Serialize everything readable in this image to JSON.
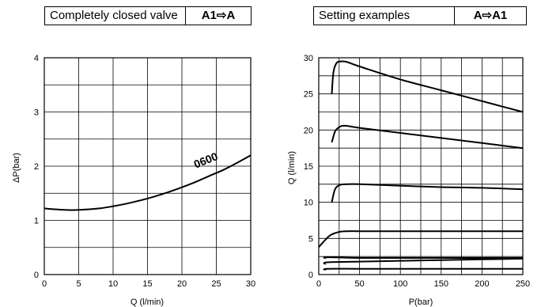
{
  "left": {
    "header_title": "Completely closed valve",
    "header_flow": "A1⇨A"
  },
  "right": {
    "header_title": "Setting examples",
    "header_flow": "A⇨A1"
  },
  "chart_data": [
    {
      "type": "line",
      "xlabel": "Q (l/min)",
      "ylabel": "ΔP(bar)",
      "xlim": [
        0,
        30
      ],
      "ylim": [
        0,
        4
      ],
      "xticks": [
        "0",
        "5",
        "10",
        "15",
        "20",
        "25",
        "30"
      ],
      "yticks": [
        "0",
        "1",
        "2",
        "3",
        "4"
      ],
      "grid": true,
      "annotation": "0600",
      "series": [
        {
          "name": "0600",
          "x": [
            0,
            2,
            4,
            6,
            8,
            10,
            12,
            14,
            16,
            18,
            20,
            22,
            24,
            26,
            28,
            30
          ],
          "y": [
            1.22,
            1.2,
            1.19,
            1.2,
            1.22,
            1.26,
            1.31,
            1.37,
            1.44,
            1.52,
            1.61,
            1.71,
            1.82,
            1.93,
            2.06,
            2.2
          ]
        }
      ]
    },
    {
      "type": "line",
      "xlabel": "P(bar)",
      "ylabel": "Q (l/min)",
      "xlim": [
        0,
        250
      ],
      "ylim": [
        0,
        30
      ],
      "xticks": [
        "0",
        "50",
        "100",
        "150",
        "200",
        "250"
      ],
      "yticks": [
        "0",
        "5",
        "10",
        "15",
        "20",
        "25",
        "30"
      ],
      "grid": true,
      "series": [
        {
          "x": [
            16,
            18,
            22,
            28,
            35,
            50,
            100,
            150,
            200,
            250
          ],
          "y": [
            25,
            28,
            29.3,
            29.5,
            29.4,
            28.8,
            27.0,
            25.5,
            24.0,
            22.5
          ]
        },
        {
          "x": [
            16,
            20,
            25,
            32,
            50,
            100,
            150,
            200,
            250
          ],
          "y": [
            18.3,
            19.8,
            20.4,
            20.6,
            20.3,
            19.6,
            18.9,
            18.2,
            17.5
          ]
        },
        {
          "x": [
            16,
            20,
            26,
            35,
            50,
            100,
            150,
            200,
            250
          ],
          "y": [
            10,
            11.8,
            12.4,
            12.5,
            12.5,
            12.3,
            12.1,
            12.0,
            11.8
          ]
        },
        {
          "x": [
            0,
            8,
            15,
            25,
            35,
            50,
            100,
            150,
            200,
            250
          ],
          "y": [
            3.8,
            4.8,
            5.5,
            5.9,
            6.0,
            6.0,
            6.0,
            6.0,
            6.0,
            6.0
          ]
        },
        {
          "x": [
            8,
            10,
            50,
            100,
            150,
            200,
            250
          ],
          "y": [
            2.2,
            2.4,
            2.3,
            2.3,
            2.3,
            2.3,
            2.3
          ]
        },
        {
          "x": [
            8,
            10,
            50,
            100,
            150,
            200,
            250
          ],
          "y": [
            1.4,
            1.7,
            1.8,
            1.9,
            2.0,
            2.1,
            2.2
          ]
        },
        {
          "x": [
            8,
            10,
            50,
            100,
            150,
            200,
            250
          ],
          "y": [
            0.6,
            0.8,
            0.8,
            0.8,
            0.8,
            0.8,
            0.8
          ]
        }
      ]
    }
  ]
}
